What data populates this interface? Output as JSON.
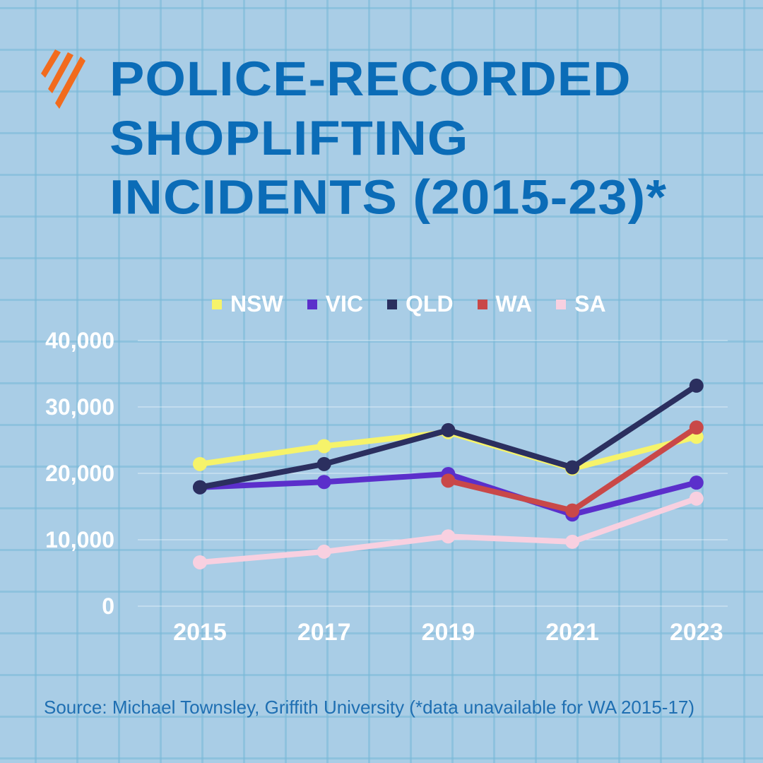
{
  "title": "POLICE-RECORDED\nSHOPLIFTING\nINCIDENTS (2015-23)*",
  "logo": "SBS",
  "source": "Source: Michael Townsley, Griffith University (*data unavailable for WA 2015-17)",
  "chart_data": {
    "type": "line",
    "title": "POLICE-RECORDED SHOPLIFTING INCIDENTS (2015-23)*",
    "x": [
      "2015",
      "2017",
      "2019",
      "2021",
      "2023"
    ],
    "ylim": [
      0,
      40000
    ],
    "yticks": [
      0,
      10000,
      20000,
      30000,
      40000
    ],
    "ytick_labels": [
      "0",
      "10,000",
      "20,000",
      "30,000",
      "40,000"
    ],
    "grid": true,
    "legend": "top",
    "series": [
      {
        "name": "NSW",
        "color": "#f6f36a",
        "values": [
          21400,
          24100,
          26200,
          20700,
          25500
        ]
      },
      {
        "name": "VIC",
        "color": "#5b2fcb",
        "values": [
          17900,
          18700,
          19900,
          13800,
          18600
        ]
      },
      {
        "name": "QLD",
        "color": "#2b2f5f",
        "values": [
          17900,
          21400,
          26500,
          20900,
          33200
        ]
      },
      {
        "name": "WA",
        "color": "#c94848",
        "values": [
          null,
          null,
          18900,
          14400,
          26900
        ]
      },
      {
        "name": "SA",
        "color": "#f8d0e0",
        "values": [
          6600,
          8200,
          10500,
          9700,
          16200
        ]
      }
    ]
  }
}
